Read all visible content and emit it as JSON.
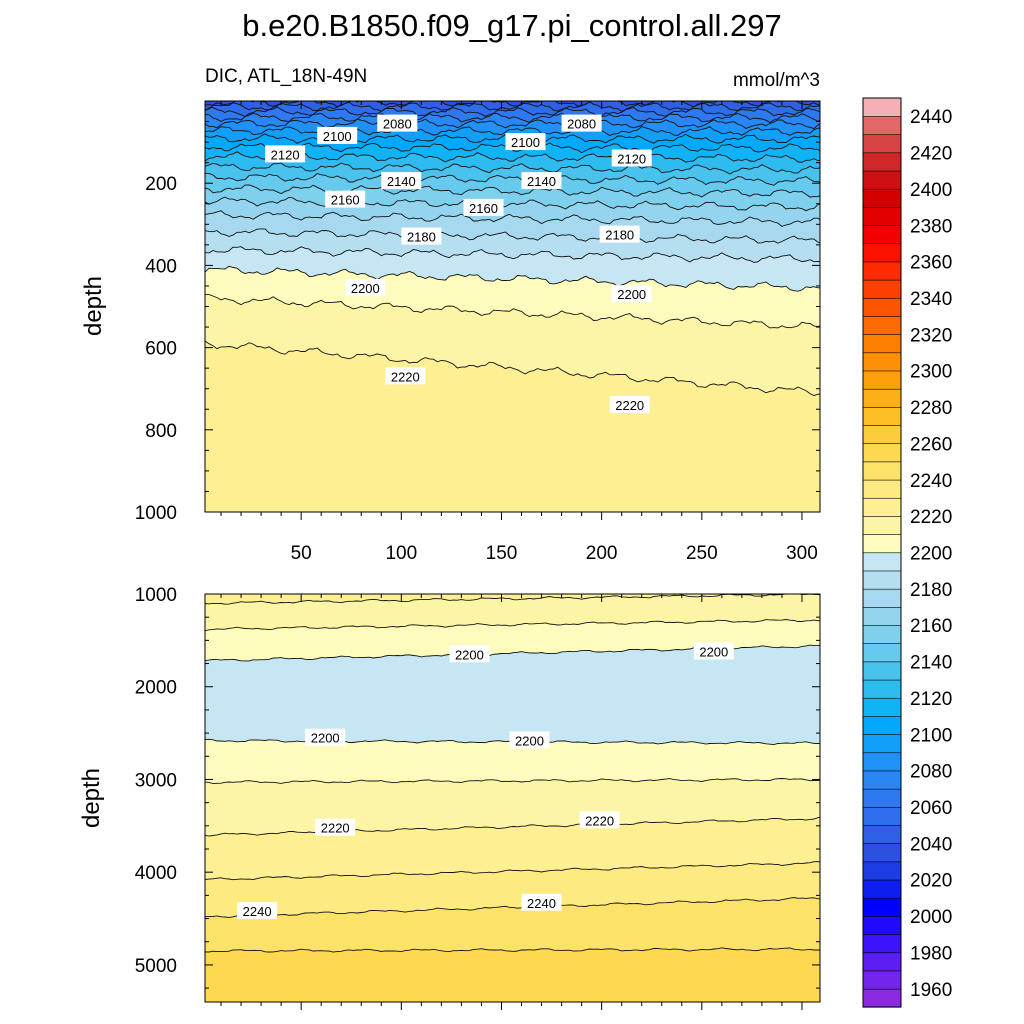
{
  "chart_data": {
    "type": "contour",
    "title": "b.e20.B1850.f09_g17.pi_control.all.297",
    "left_label": "DIC, ATL_18N-49N",
    "right_label": "mmol/m^3",
    "ylabel": "depth",
    "x_ticks": [
      50,
      100,
      150,
      200,
      250,
      300
    ],
    "x_range": [
      2,
      309
    ],
    "panels": [
      {
        "name": "upper",
        "y_range": [
          0,
          1000
        ],
        "y_ticks": [
          200,
          400,
          600,
          800,
          1000
        ],
        "show_x_tick_labels": true,
        "contours": [
          {
            "level": 2040,
            "y": [
              3,
              3
            ]
          },
          {
            "level": 2050,
            "y": [
              14,
              14
            ]
          },
          {
            "level": 2060,
            "y": [
              26,
              27
            ]
          },
          {
            "level": 2070,
            "y": [
              40,
              41
            ]
          },
          {
            "level": 2080,
            "y": [
              55,
              56
            ]
          },
          {
            "level": 2090,
            "y": [
              72,
              74
            ]
          },
          {
            "level": 2100,
            "y": [
              91,
              93
            ]
          },
          {
            "level": 2110,
            "y": [
              112,
              115
            ]
          },
          {
            "level": 2120,
            "y": [
              135,
              140
            ]
          },
          {
            "level": 2130,
            "y": [
              160,
              167
            ]
          },
          {
            "level": 2140,
            "y": [
              185,
              195
            ]
          },
          {
            "level": 2150,
            "y": [
              213,
              225
            ]
          },
          {
            "level": 2160,
            "y": [
              243,
              258
            ]
          },
          {
            "level": 2170,
            "y": [
              277,
              295
            ]
          },
          {
            "level": 2180,
            "y": [
              318,
              340
            ]
          },
          {
            "level": 2190,
            "y": [
              362,
              385
            ]
          },
          {
            "level": 2200,
            "y": [
              410,
              455
            ]
          },
          {
            "level": 2210,
            "y": [
              480,
              550
            ]
          },
          {
            "level": 2220,
            "y": [
              590,
              710
            ]
          }
        ],
        "labels": [
          {
            "text": "2080",
            "x": 98,
            "y": 55
          },
          {
            "text": "2080",
            "x": 190,
            "y": 55
          },
          {
            "text": "2100",
            "x": 68,
            "y": 85
          },
          {
            "text": "2100",
            "x": 162,
            "y": 100
          },
          {
            "text": "2120",
            "x": 42,
            "y": 130
          },
          {
            "text": "2120",
            "x": 215,
            "y": 140
          },
          {
            "text": "2140",
            "x": 100,
            "y": 195
          },
          {
            "text": "2140",
            "x": 170,
            "y": 195
          },
          {
            "text": "2160",
            "x": 72,
            "y": 240
          },
          {
            "text": "2160",
            "x": 141,
            "y": 260
          },
          {
            "text": "2180",
            "x": 110,
            "y": 330
          },
          {
            "text": "2180",
            "x": 209,
            "y": 325
          },
          {
            "text": "2200",
            "x": 82,
            "y": 455
          },
          {
            "text": "2200",
            "x": 215,
            "y": 470
          },
          {
            "text": "2220",
            "x": 102,
            "y": 670
          },
          {
            "text": "2220",
            "x": 214,
            "y": 740
          }
        ]
      },
      {
        "name": "lower",
        "y_range": [
          1000,
          5400
        ],
        "y_ticks": [
          1000,
          2000,
          3000,
          4000,
          5000
        ],
        "show_x_tick_labels": false,
        "contours": [
          {
            "level": 2220,
            "y": [
              1100,
              1000
            ]
          },
          {
            "level": 2210,
            "y": [
              1380,
              1280
            ]
          },
          {
            "level": 2200,
            "y": [
              1720,
              1560
            ]
          },
          {
            "level": 2200,
            "y": [
              2580,
              2610
            ]
          },
          {
            "level": 2210,
            "y": [
              3030,
              3000
            ]
          },
          {
            "level": 2220,
            "y": [
              3600,
              3420
            ]
          },
          {
            "level": 2230,
            "y": [
              4080,
              3900
            ]
          },
          {
            "level": 2240,
            "y": [
              4480,
              4280
            ]
          },
          {
            "level": 2250,
            "y": [
              4850,
              4830
            ]
          }
        ],
        "labels": [
          {
            "text": "2200",
            "x": 134,
            "y": 1650
          },
          {
            "text": "2200",
            "x": 256,
            "y": 1620
          },
          {
            "text": "2200",
            "x": 62,
            "y": 2550
          },
          {
            "text": "2200",
            "x": 164,
            "y": 2580
          },
          {
            "text": "2220",
            "x": 67,
            "y": 3520
          },
          {
            "text": "2220",
            "x": 199,
            "y": 3440
          },
          {
            "text": "2240",
            "x": 28,
            "y": 4420
          },
          {
            "text": "2240",
            "x": 170,
            "y": 4330
          }
        ]
      }
    ],
    "colorbar": {
      "levels": [
        1950,
        1960,
        1970,
        1980,
        1990,
        2000,
        2010,
        2020,
        2030,
        2040,
        2050,
        2060,
        2070,
        2080,
        2090,
        2100,
        2110,
        2120,
        2130,
        2140,
        2150,
        2160,
        2170,
        2180,
        2190,
        2200,
        2210,
        2220,
        2230,
        2240,
        2250,
        2260,
        2270,
        2280,
        2290,
        2300,
        2310,
        2320,
        2330,
        2340,
        2350,
        2360,
        2370,
        2380,
        2390,
        2400,
        2410,
        2420,
        2430,
        2440,
        2450
      ],
      "tick_labels": [
        1960,
        1980,
        2000,
        2020,
        2040,
        2060,
        2080,
        2100,
        2120,
        2140,
        2160,
        2180,
        2200,
        2220,
        2240,
        2260,
        2280,
        2300,
        2320,
        2340,
        2360,
        2380,
        2400,
        2420,
        2440
      ],
      "colors": [
        "#8a2be2",
        "#7226ec",
        "#5b1ef5",
        "#3c14fb",
        "#1f0aff",
        "#0000ff",
        "#0d1ef0",
        "#1d3ce3",
        "#2a50dd",
        "#2e5fe4",
        "#2e6deb",
        "#2e79f0",
        "#2a86f4",
        "#2092f7",
        "#129ffa",
        "#00a9fc",
        "#10b3f6",
        "#2ebcf0",
        "#4ac2ee",
        "#66caee",
        "#7ed0ec",
        "#94d4ee",
        "#a6d9ef",
        "#b5dff1",
        "#c6e6f4",
        "#fdfcbd",
        "#fdf5a6",
        "#fdef92",
        "#fdea80",
        "#fde26a",
        "#fdd850",
        "#fdcc3a",
        "#fdbf24",
        "#fdb016",
        "#fda00c",
        "#fd9006",
        "#fd7f02",
        "#fd6a02",
        "#fd5402",
        "#fd3f02",
        "#fd2a02",
        "#fd1202",
        "#f50000",
        "#e30000",
        "#d40000",
        "#cf1010",
        "#d02828",
        "#d84444",
        "#e26868",
        "#f5b0b5"
      ]
    }
  }
}
